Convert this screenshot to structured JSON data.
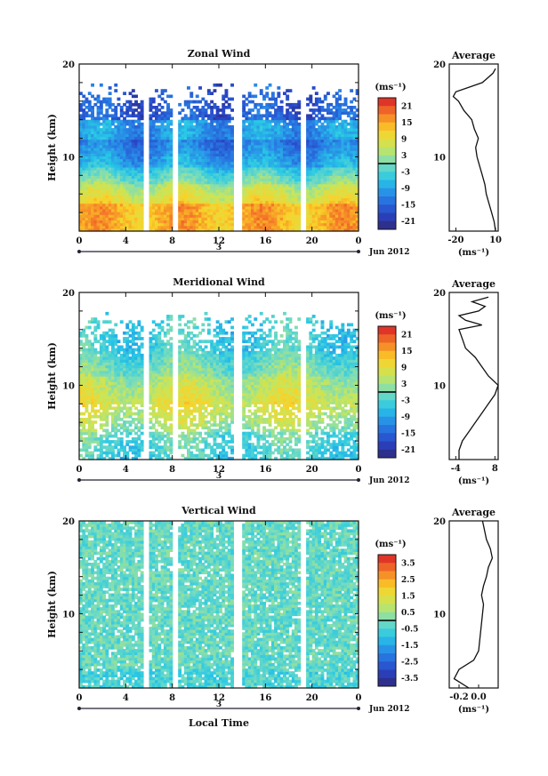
{
  "figure": {
    "xlabel": "Local Time",
    "date_label": "Jun 2012",
    "day_label": "3",
    "unit_label": "(ms⁻¹)",
    "avg_title": "Average",
    "ylabel": "Height (km)"
  },
  "chart_data": [
    {
      "type": "heatmap",
      "title": "Zonal Wind",
      "xlabel": "",
      "ylabel": "Height (km)",
      "x_ticks": [
        "0",
        "4",
        "8",
        "12",
        "16",
        "20",
        "0"
      ],
      "y_ticks": [
        "20",
        "10"
      ],
      "xlim": [
        0,
        24
      ],
      "ylim": [
        2,
        20
      ],
      "colorbar": {
        "label": "(ms⁻¹)",
        "ticks": [
          "21",
          "15",
          "9",
          "3",
          "-3",
          "-9",
          "-15",
          "-21"
        ],
        "range": [
          -24,
          24
        ]
      },
      "profile": {
        "title": "Average",
        "x_ticks": [
          "-20",
          "10"
        ],
        "xlim": [
          -25,
          12
        ],
        "xlabel": "(ms⁻¹)",
        "points": [
          [
            10,
            2
          ],
          [
            9,
            3
          ],
          [
            7,
            4
          ],
          [
            5,
            5
          ],
          [
            3,
            6
          ],
          [
            2,
            7
          ],
          [
            0,
            8
          ],
          [
            -2,
            9
          ],
          [
            -4,
            10
          ],
          [
            -5,
            11
          ],
          [
            -3,
            12
          ],
          [
            -6,
            13
          ],
          [
            -8,
            14
          ],
          [
            -14,
            15
          ],
          [
            -18,
            16
          ],
          [
            -22,
            16.5
          ],
          [
            -20,
            17
          ],
          [
            -10,
            17.5
          ],
          [
            0,
            18
          ],
          [
            4,
            18.5
          ],
          [
            8,
            19
          ],
          [
            10,
            19.5
          ]
        ]
      }
    },
    {
      "type": "heatmap",
      "title": "Meridional Wind",
      "xlabel": "",
      "ylabel": "Height (km)",
      "x_ticks": [
        "0",
        "4",
        "8",
        "12",
        "16",
        "20",
        "0"
      ],
      "y_ticks": [
        "20",
        "10"
      ],
      "xlim": [
        0,
        24
      ],
      "ylim": [
        2,
        20
      ],
      "colorbar": {
        "label": "(ms⁻¹)",
        "ticks": [
          "21",
          "15",
          "9",
          "3",
          "-3",
          "-9",
          "-15",
          "-21"
        ],
        "range": [
          -24,
          24
        ]
      },
      "profile": {
        "title": "Average",
        "x_ticks": [
          "-4",
          "8"
        ],
        "xlim": [
          -6,
          9
        ],
        "xlabel": "(ms⁻¹)",
        "points": [
          [
            -3,
            2
          ],
          [
            -3,
            3
          ],
          [
            -2,
            4
          ],
          [
            0,
            5
          ],
          [
            2,
            6
          ],
          [
            4,
            7
          ],
          [
            6,
            8
          ],
          [
            8,
            9
          ],
          [
            9,
            10
          ],
          [
            6,
            11
          ],
          [
            4,
            12
          ],
          [
            2,
            13
          ],
          [
            -1,
            14
          ],
          [
            -2,
            15
          ],
          [
            -3,
            16
          ],
          [
            4,
            16.5
          ],
          [
            -1,
            17
          ],
          [
            -3,
            17.5
          ],
          [
            3,
            18
          ],
          [
            5,
            18.5
          ],
          [
            1,
            19
          ],
          [
            6,
            19.5
          ]
        ]
      }
    },
    {
      "type": "heatmap",
      "title": "Vertical Wind",
      "xlabel": "Local Time",
      "ylabel": "Height (km)",
      "x_ticks": [
        "0",
        "4",
        "8",
        "12",
        "16",
        "20",
        "0"
      ],
      "y_ticks": [
        "20",
        "10"
      ],
      "xlim": [
        0,
        24
      ],
      "ylim": [
        2,
        20
      ],
      "colorbar": {
        "label": "(ms⁻¹)",
        "ticks": [
          "3.5",
          "2.5",
          "1.5",
          "0.5",
          "-0.5",
          "-1.5",
          "-2.5",
          "-3.5"
        ],
        "range": [
          -4,
          4
        ]
      },
      "profile": {
        "title": "Average",
        "x_ticks": [
          "-0.2",
          "0.0"
        ],
        "xlim": [
          -0.3,
          0.2
        ],
        "xlabel": "(ms⁻¹)",
        "points": [
          [
            -0.1,
            2
          ],
          [
            -0.25,
            3
          ],
          [
            -0.2,
            4
          ],
          [
            -0.05,
            5
          ],
          [
            0.0,
            6
          ],
          [
            0.01,
            7
          ],
          [
            0.02,
            8
          ],
          [
            0.03,
            9
          ],
          [
            0.04,
            10
          ],
          [
            0.05,
            11
          ],
          [
            0.03,
            12
          ],
          [
            0.05,
            13
          ],
          [
            0.08,
            14
          ],
          [
            0.1,
            15
          ],
          [
            0.14,
            16
          ],
          [
            0.12,
            17
          ],
          [
            0.08,
            18
          ],
          [
            0.06,
            19
          ],
          [
            0.04,
            20
          ]
        ]
      }
    }
  ]
}
